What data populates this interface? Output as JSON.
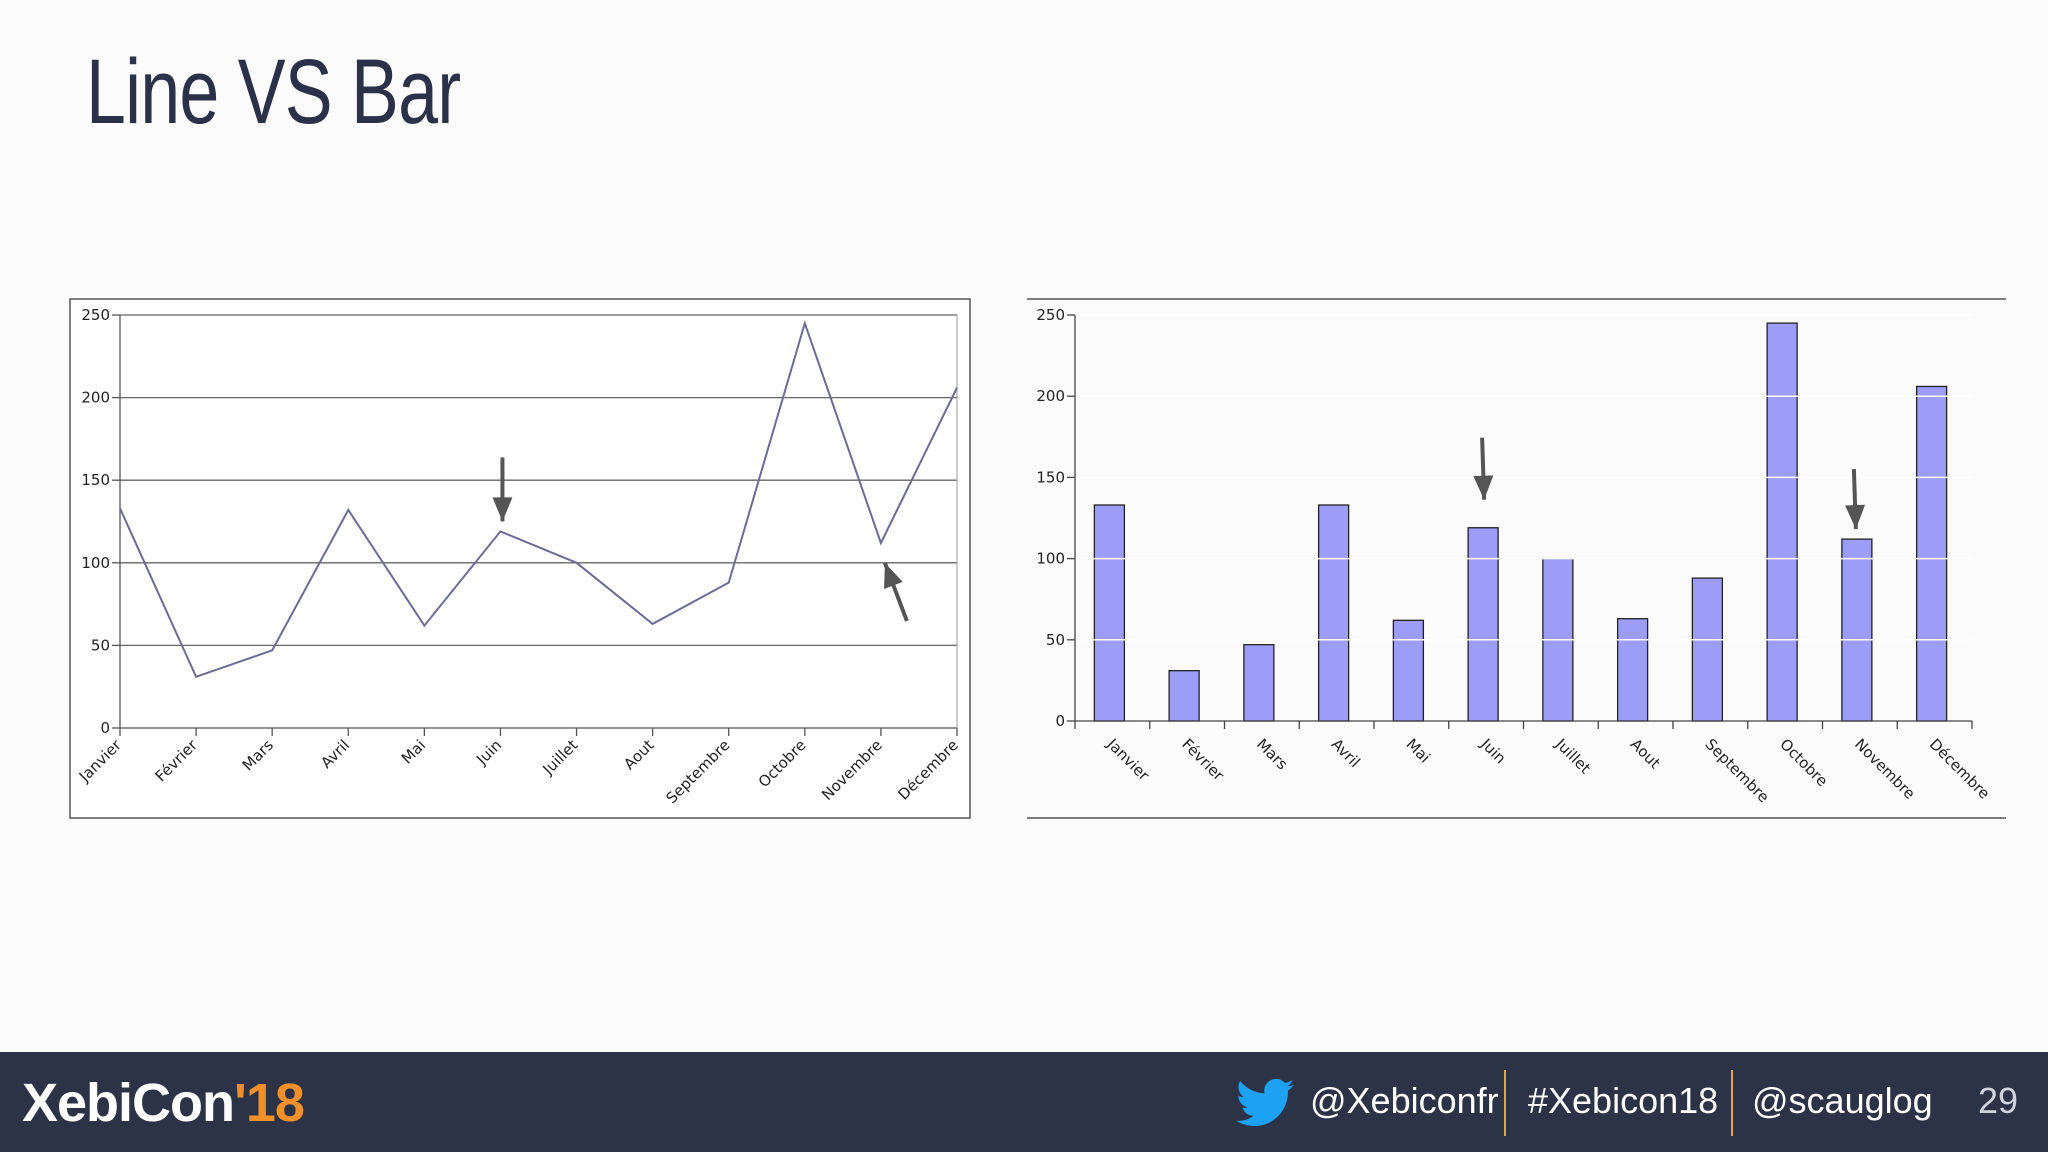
{
  "slide": {
    "title": "Line VS Bar"
  },
  "footer": {
    "logo_main": "XebiCon",
    "logo_year": "'18",
    "twitter_handle": "@Xebiconfr",
    "hashtag": "#Xebicon18",
    "speaker_handle": "@scauglog",
    "page_number": "29"
  },
  "colors": {
    "background": "#fbfbfb",
    "title": "#2b3148",
    "footer_bg": "#2c3347",
    "accent_orange": "#f0902a",
    "twitter_blue": "#1da1f2",
    "line_series": "#6b6a99",
    "bar_fill": "#9d9df8",
    "arrow": "#555555"
  },
  "chart_data": [
    {
      "type": "line",
      "title": "",
      "xlabel": "",
      "ylabel": "",
      "categories": [
        "Janvier",
        "Février",
        "Mars",
        "Avril",
        "Mai",
        "Juin",
        "Juillet",
        "Aout",
        "Septembre",
        "Octobre",
        "Novembre",
        "Décembre"
      ],
      "values": [
        133,
        31,
        47,
        132,
        62,
        119,
        100,
        63,
        88,
        245,
        112,
        206
      ],
      "ylim": [
        0,
        250
      ],
      "yticks": [
        0,
        50,
        100,
        150,
        200,
        250
      ],
      "grid": "horizontal",
      "annotations": [
        {
          "type": "arrow",
          "target": "Juin",
          "direction": "down"
        },
        {
          "type": "arrow",
          "target": "Novembre",
          "direction": "up"
        }
      ]
    },
    {
      "type": "bar",
      "title": "",
      "xlabel": "",
      "ylabel": "",
      "categories": [
        "Janvier",
        "Février",
        "Mars",
        "Avril",
        "Mai",
        "Juin",
        "Juillet",
        "Aout",
        "Septembre",
        "Octobre",
        "Novembre",
        "Décembre"
      ],
      "values": [
        133,
        31,
        47,
        133,
        62,
        119,
        100,
        63,
        88,
        245,
        112,
        206
      ],
      "ylim": [
        0,
        250
      ],
      "yticks": [
        0,
        50,
        100,
        150,
        200,
        250
      ],
      "grid": "horizontal",
      "annotations": [
        {
          "type": "arrow",
          "target": "Juin",
          "direction": "down"
        },
        {
          "type": "arrow",
          "target": "Novembre",
          "direction": "down"
        }
      ]
    }
  ]
}
